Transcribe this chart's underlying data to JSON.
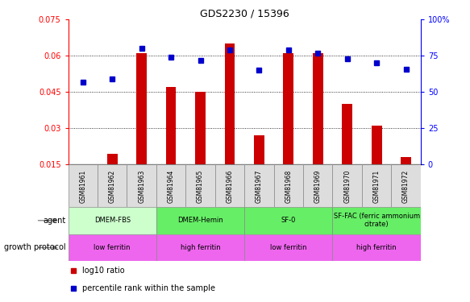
{
  "title": "GDS2230 / 15396",
  "samples": [
    "GSM81961",
    "GSM81962",
    "GSM81963",
    "GSM81964",
    "GSM81965",
    "GSM81966",
    "GSM81967",
    "GSM81968",
    "GSM81969",
    "GSM81970",
    "GSM81971",
    "GSM81972"
  ],
  "log10_ratio": [
    0.0152,
    0.0195,
    0.061,
    0.047,
    0.045,
    0.065,
    0.027,
    0.061,
    0.061,
    0.04,
    0.031,
    0.018
  ],
  "percentile_rank": [
    57,
    59,
    80,
    74,
    72,
    79,
    65,
    79,
    77,
    73,
    70,
    66
  ],
  "ylim_left": [
    0.015,
    0.075
  ],
  "ylim_right": [
    0,
    100
  ],
  "yticks_left": [
    0.015,
    0.03,
    0.045,
    0.06,
    0.075
  ],
  "yticks_right": [
    0,
    25,
    50,
    75,
    100
  ],
  "bar_color": "#cc0000",
  "dot_color": "#0000cc",
  "agent_configs": [
    {
      "label": "DMEM-FBS",
      "start": 0,
      "end": 2,
      "color": "#ccffcc"
    },
    {
      "label": "DMEM-Hemin",
      "start": 3,
      "end": 5,
      "color": "#66ee66"
    },
    {
      "label": "SF-0",
      "start": 6,
      "end": 8,
      "color": "#66ee66"
    },
    {
      "label": "SF-FAC (ferric ammonium\ncitrate)",
      "start": 9,
      "end": 11,
      "color": "#66ee66"
    }
  ],
  "growth_configs": [
    {
      "label": "low ferritin",
      "start": 0,
      "end": 2,
      "color": "#ee66ee"
    },
    {
      "label": "high ferritin",
      "start": 3,
      "end": 5,
      "color": "#ee66ee"
    },
    {
      "label": "low ferritin",
      "start": 6,
      "end": 8,
      "color": "#ee66ee"
    },
    {
      "label": "high ferritin",
      "start": 9,
      "end": 11,
      "color": "#ee66ee"
    }
  ],
  "legend_label_bar": "log10 ratio",
  "legend_label_dot": "percentile rank within the sample",
  "fig_width": 5.83,
  "fig_height": 3.75,
  "dpi": 100
}
